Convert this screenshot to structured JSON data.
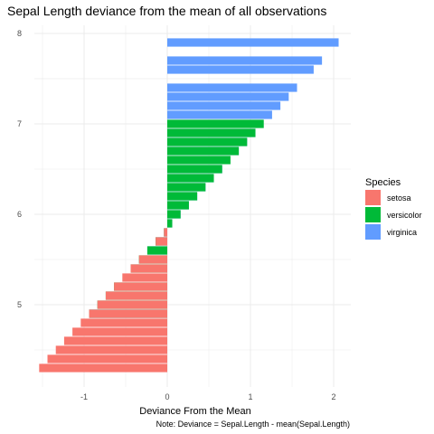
{
  "chart_data": {
    "type": "bar",
    "orientation": "horizontal",
    "title": "Sepal Length deviance from the mean of all observations",
    "xlabel": "Deviance From the Mean",
    "ylabel": "",
    "caption": "Note: Deviance = Sepal.Length - mean(Sepal.Length)",
    "xlim": [
      -1.55,
      2.2
    ],
    "ylim": [
      4.2,
      8.0
    ],
    "x_ticks": [
      -1,
      0,
      1,
      2
    ],
    "y_ticks": [
      5,
      6,
      7,
      8
    ],
    "grid": true,
    "legend": {
      "title": "Species",
      "position": "right",
      "items": [
        {
          "label": "setosa",
          "color": "#F8766D"
        },
        {
          "label": "versicolor",
          "color": "#00BA38"
        },
        {
          "label": "virginica",
          "color": "#619CFF"
        }
      ]
    },
    "bars": [
      {
        "y": 7.9,
        "x": 2.06,
        "species": "virginica"
      },
      {
        "y": 7.7,
        "x": 1.86,
        "species": "virginica"
      },
      {
        "y": 7.6,
        "x": 1.76,
        "species": "virginica"
      },
      {
        "y": 7.4,
        "x": 1.56,
        "species": "virginica"
      },
      {
        "y": 7.3,
        "x": 1.46,
        "species": "virginica"
      },
      {
        "y": 7.2,
        "x": 1.36,
        "species": "virginica"
      },
      {
        "y": 7.1,
        "x": 1.26,
        "species": "virginica"
      },
      {
        "y": 7.0,
        "x": 1.16,
        "species": "versicolor"
      },
      {
        "y": 6.9,
        "x": 1.06,
        "species": "virginica"
      },
      {
        "y": 6.9,
        "x": 1.06,
        "species": "versicolor"
      },
      {
        "y": 6.8,
        "x": 0.96,
        "species": "virginica"
      },
      {
        "y": 6.8,
        "x": 0.96,
        "species": "versicolor"
      },
      {
        "y": 6.7,
        "x": 0.86,
        "species": "virginica"
      },
      {
        "y": 6.7,
        "x": 0.86,
        "species": "versicolor"
      },
      {
        "y": 6.6,
        "x": 0.76,
        "species": "versicolor"
      },
      {
        "y": 6.5,
        "x": 0.66,
        "species": "virginica"
      },
      {
        "y": 6.5,
        "x": 0.66,
        "species": "versicolor"
      },
      {
        "y": 6.4,
        "x": 0.56,
        "species": "virginica"
      },
      {
        "y": 6.4,
        "x": 0.56,
        "species": "versicolor"
      },
      {
        "y": 6.3,
        "x": 0.46,
        "species": "virginica"
      },
      {
        "y": 6.3,
        "x": 0.46,
        "species": "versicolor"
      },
      {
        "y": 6.2,
        "x": 0.36,
        "species": "virginica"
      },
      {
        "y": 6.2,
        "x": 0.36,
        "species": "versicolor"
      },
      {
        "y": 6.1,
        "x": 0.26,
        "species": "virginica"
      },
      {
        "y": 6.1,
        "x": 0.26,
        "species": "versicolor"
      },
      {
        "y": 6.0,
        "x": 0.16,
        "species": "virginica"
      },
      {
        "y": 6.0,
        "x": 0.16,
        "species": "versicolor"
      },
      {
        "y": 5.9,
        "x": 0.06,
        "species": "virginica"
      },
      {
        "y": 5.9,
        "x": 0.06,
        "species": "versicolor"
      },
      {
        "y": 5.8,
        "x": -0.04,
        "species": "virginica"
      },
      {
        "y": 5.8,
        "x": -0.04,
        "species": "versicolor"
      },
      {
        "y": 5.8,
        "x": -0.04,
        "species": "setosa"
      },
      {
        "y": 5.7,
        "x": -0.14,
        "species": "virginica"
      },
      {
        "y": 5.7,
        "x": -0.14,
        "species": "versicolor"
      },
      {
        "y": 5.7,
        "x": -0.14,
        "species": "setosa"
      },
      {
        "y": 5.6,
        "x": -0.24,
        "species": "virginica"
      },
      {
        "y": 5.6,
        "x": -0.24,
        "species": "versicolor"
      },
      {
        "y": 5.5,
        "x": -0.34,
        "species": "versicolor"
      },
      {
        "y": 5.5,
        "x": -0.34,
        "species": "setosa"
      },
      {
        "y": 5.4,
        "x": -0.44,
        "species": "versicolor"
      },
      {
        "y": 5.4,
        "x": -0.44,
        "species": "setosa"
      },
      {
        "y": 5.3,
        "x": -0.54,
        "species": "setosa"
      },
      {
        "y": 5.2,
        "x": -0.64,
        "species": "versicolor"
      },
      {
        "y": 5.2,
        "x": -0.64,
        "species": "setosa"
      },
      {
        "y": 5.1,
        "x": -0.74,
        "species": "versicolor"
      },
      {
        "y": 5.1,
        "x": -0.74,
        "species": "setosa"
      },
      {
        "y": 5.0,
        "x": -0.84,
        "species": "versicolor"
      },
      {
        "y": 5.0,
        "x": -0.84,
        "species": "setosa"
      },
      {
        "y": 4.9,
        "x": -0.94,
        "species": "virginica"
      },
      {
        "y": 4.9,
        "x": -0.94,
        "species": "versicolor"
      },
      {
        "y": 4.9,
        "x": -0.94,
        "species": "setosa"
      },
      {
        "y": 4.8,
        "x": -1.04,
        "species": "setosa"
      },
      {
        "y": 4.7,
        "x": -1.14,
        "species": "setosa"
      },
      {
        "y": 4.6,
        "x": -1.24,
        "species": "setosa"
      },
      {
        "y": 4.5,
        "x": -1.34,
        "species": "setosa"
      },
      {
        "y": 4.4,
        "x": -1.44,
        "species": "setosa"
      },
      {
        "y": 4.3,
        "x": -1.54,
        "species": "setosa"
      }
    ]
  }
}
